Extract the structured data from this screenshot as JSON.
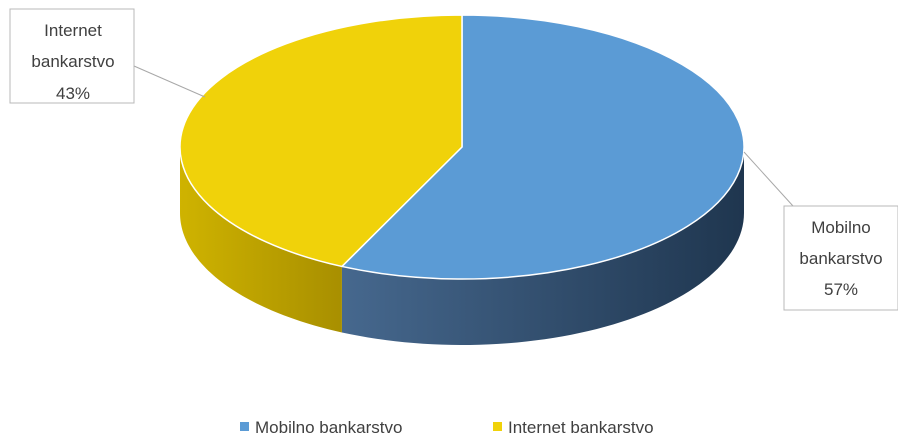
{
  "chart_data": {
    "type": "pie",
    "style": "3d",
    "title": "",
    "slices": [
      {
        "name": "Mobilno bankarstvo",
        "value": 57,
        "label_lines": [
          "Mobilno",
          "bankarstvo",
          "57%"
        ],
        "color": "#5b9bd5",
        "side_color": "#2f4a66"
      },
      {
        "name": "Internet bankarstvo",
        "value": 43,
        "label_lines": [
          "Internet",
          "bankarstvo",
          "43%"
        ],
        "color": "#f0d20a",
        "side_color": "#c2a600"
      }
    ],
    "legend": {
      "position": "bottom",
      "entries": [
        "Mobilno bankarstvo",
        "Internet bankarstvo"
      ]
    }
  }
}
